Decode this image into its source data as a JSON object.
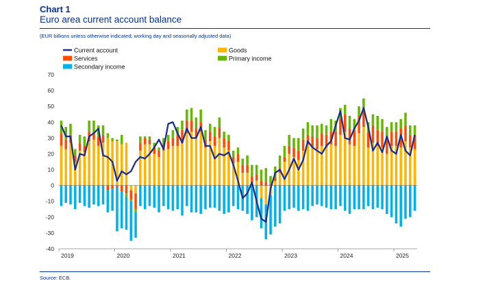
{
  "header": {
    "chart_label": "Chart 1",
    "title": "Euro area current account balance",
    "subtitle": "(EUR billions unless otherwise indicated; working day and seasonally adjusted data)",
    "source": "Source: ECB."
  },
  "colors": {
    "current_account": "#1a2f8a",
    "goods": "#ffb400",
    "services": "#ff4b00",
    "primary_income": "#65b800",
    "secondary_income": "#00b1ea"
  },
  "chart_data": {
    "type": "bar",
    "stacked": true,
    "ylim": [
      -40,
      70
    ],
    "yticks": [
      -40,
      -30,
      -20,
      -10,
      0,
      10,
      20,
      30,
      40,
      50,
      60,
      70
    ],
    "xticks": [
      "2019",
      "2020",
      "2021",
      "2022",
      "2023",
      "2024",
      "2025"
    ],
    "categories": [
      "Jan 2019",
      "Feb 2019",
      "Mar 2019",
      "Apr 2019",
      "May 2019",
      "Jun 2019",
      "Jul 2019",
      "Aug 2019",
      "Sep 2019",
      "Oct 2019",
      "Nov 2019",
      "Dec 2019",
      "Jan 2020",
      "Feb 2020",
      "Mar 2020",
      "Apr 2020",
      "May 2020",
      "Jun 2020",
      "Jul 2020",
      "Aug 2020",
      "Sep 2020",
      "Oct 2020",
      "Nov 2020",
      "Dec 2020",
      "Jan 2021",
      "Feb 2021",
      "Mar 2021",
      "Apr 2021",
      "May 2021",
      "Jun 2021",
      "Jul 2021",
      "Aug 2021",
      "Sep 2021",
      "Oct 2021",
      "Nov 2021",
      "Dec 2021",
      "Jan 2022",
      "Feb 2022",
      "Mar 2022",
      "Apr 2022",
      "May 2022",
      "Jun 2022",
      "Jul 2022",
      "Aug 2022",
      "Sep 2022",
      "Oct 2022",
      "Nov 2022",
      "Dec 2022",
      "Jan 2023",
      "Feb 2023",
      "Mar 2023",
      "Apr 2023",
      "May 2023",
      "Jun 2023",
      "Jul 2023",
      "Aug 2023",
      "Sep 2023",
      "Oct 2023",
      "Nov 2023",
      "Dec 2023",
      "Jan 2024",
      "Feb 2024",
      "Mar 2024",
      "Apr 2024",
      "May 2024",
      "Jun 2024",
      "Jul 2024",
      "Aug 2024",
      "Sep 2024",
      "Oct 2024",
      "Nov 2024",
      "Dec 2024",
      "Jan 2025",
      "Feb 2025",
      "Mar 2025",
      "Apr 2025",
      "May 2025"
    ],
    "series": [
      {
        "name": "Goods",
        "key": "goods",
        "kind": "bar",
        "values": [
          25,
          23,
          27,
          15,
          22,
          21,
          28,
          29,
          25,
          27,
          30,
          28,
          28,
          26,
          27,
          -3,
          -5,
          22,
          26,
          26,
          20,
          18,
          22,
          23,
          25,
          25,
          27,
          33,
          34,
          30,
          34,
          24,
          28,
          25,
          30,
          24,
          22,
          14,
          15,
          8,
          8,
          2,
          3,
          -8,
          -12,
          -6,
          3,
          8,
          15,
          20,
          18,
          16,
          22,
          26,
          24,
          23,
          25,
          24,
          26,
          25,
          32,
          34,
          26,
          25,
          33,
          37,
          24,
          27,
          25,
          24,
          20,
          25,
          25,
          24,
          28,
          24,
          23
        ]
      },
      {
        "name": "Services",
        "key": "services",
        "kind": "bar",
        "values": [
          8,
          6,
          5,
          4,
          5,
          4,
          6,
          4,
          6,
          5,
          -3,
          -2,
          -1,
          -4,
          -5,
          -6,
          -10,
          5,
          4,
          3,
          4,
          4,
          4,
          5,
          5,
          7,
          8,
          8,
          7,
          6,
          6,
          5,
          6,
          6,
          7,
          6,
          6,
          4,
          5,
          5,
          5,
          4,
          4,
          3,
          2,
          1,
          2,
          3,
          3,
          5,
          6,
          6,
          7,
          6,
          7,
          7,
          8,
          8,
          8,
          9,
          10,
          11,
          10,
          10,
          11,
          10,
          10,
          11,
          10,
          10,
          10,
          9,
          9,
          12,
          10,
          8,
          9
        ]
      },
      {
        "name": "Primary income",
        "key": "primary_income",
        "kind": "bar",
        "values": [
          8,
          8,
          7,
          4,
          5,
          6,
          7,
          8,
          7,
          6,
          3,
          2,
          1,
          6,
          -2,
          -1,
          -2,
          4,
          1,
          2,
          3,
          2,
          4,
          4,
          5,
          5,
          6,
          7,
          8,
          7,
          8,
          6,
          5,
          6,
          6,
          4,
          4,
          4,
          4,
          4,
          6,
          7,
          6,
          7,
          9,
          5,
          7,
          8,
          7,
          7,
          6,
          8,
          7,
          8,
          7,
          8,
          6,
          6,
          8,
          7,
          7,
          6,
          8,
          7,
          6,
          8,
          6,
          7,
          9,
          8,
          7,
          6,
          6,
          6,
          8,
          6,
          6
        ]
      },
      {
        "name": "Secondary income",
        "key": "secondary_income",
        "kind": "bar",
        "values": [
          -13,
          -11,
          -12,
          -15,
          -11,
          -13,
          -14,
          -12,
          -13,
          -12,
          -14,
          -14,
          -28,
          -23,
          -21,
          -25,
          -16,
          -13,
          -15,
          -13,
          -14,
          -17,
          -13,
          -15,
          -16,
          -15,
          -19,
          -13,
          -17,
          -17,
          -18,
          -15,
          -14,
          -14,
          -16,
          -18,
          -17,
          -13,
          -15,
          -16,
          -18,
          -22,
          -20,
          -19,
          -22,
          -25,
          -26,
          -24,
          -16,
          -15,
          -14,
          -16,
          -15,
          -16,
          -13,
          -12,
          -13,
          -14,
          -15,
          -15,
          -13,
          -16,
          -18,
          -15,
          -15,
          -15,
          -13,
          -15,
          -14,
          -15,
          -18,
          -20,
          -24,
          -26,
          -21,
          -20,
          -16
        ]
      },
      {
        "name": "Current account",
        "key": "current_account",
        "kind": "line",
        "values": [
          38,
          31,
          31,
          10,
          20,
          19,
          31,
          33,
          36,
          19,
          18,
          15,
          3,
          9,
          7,
          9,
          15,
          18,
          17,
          20,
          24,
          29,
          23,
          39,
          40,
          33,
          27,
          36,
          30,
          30,
          37,
          25,
          25,
          17,
          20,
          19,
          21,
          13,
          3,
          -8,
          -5,
          2,
          -10,
          -21,
          -23,
          -2,
          8,
          10,
          4,
          10,
          17,
          10,
          16,
          28,
          24,
          22,
          20,
          25,
          28,
          38,
          47,
          30,
          29,
          36,
          41,
          49,
          37,
          22,
          27,
          21,
          31,
          22,
          20,
          32,
          22,
          19,
          32
        ]
      }
    ]
  },
  "legend": [
    {
      "label": "Current account",
      "key": "current_account",
      "kind": "line"
    },
    {
      "label": "Goods",
      "key": "goods",
      "kind": "bar"
    },
    {
      "label": "Services",
      "key": "services",
      "kind": "bar"
    },
    {
      "label": "Primary income",
      "key": "primary_income",
      "kind": "bar"
    },
    {
      "label": "Secondary income",
      "key": "secondary_income",
      "kind": "bar"
    }
  ]
}
